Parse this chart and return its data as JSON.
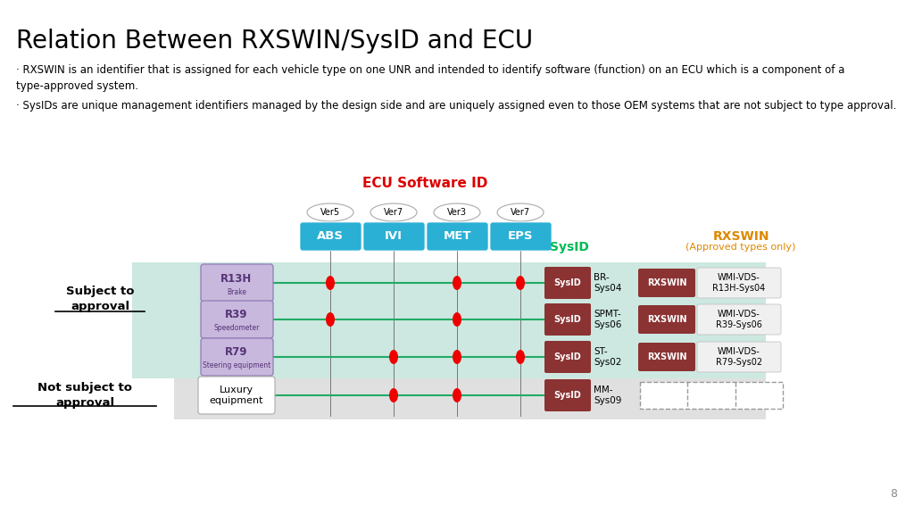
{
  "title": "Relation Between RXSWIN/SysID and ECU",
  "bullet1": "· RXSWIN is an identifier that is assigned for each vehicle type on one UNR and intended to identify software (function) on an ECU which is a component of a type-approved system.",
  "bullet2": "· SysIDs are unique management identifiers managed by the design side and are uniquely assigned even to those OEM systems that are not subject to type approval.",
  "ecu_label": "ECU Software ID",
  "ecu_label_color": "#dd0000",
  "ecu_cols": [
    "ABS",
    "IVI",
    "MET",
    "EPS"
  ],
  "ecu_versions": [
    "Ver5",
    "Ver7",
    "Ver3",
    "Ver7"
  ],
  "ecu_col_color": "#2ab0d4",
  "sysid_label": "SysID",
  "sysid_label_color": "#00bb55",
  "rxswin_label": "RXSWIN",
  "rxswin_sub_label": "(Approved types only)",
  "rxswin_label_color": "#dd8800",
  "subject_rows": [
    {
      "ecu_name": "R13H",
      "ecu_sub": "Brake",
      "dots": [
        0,
        2,
        3
      ],
      "sysid": "SysID",
      "sysid_id": "BR-\nSys04",
      "rxswin": "RXSWIN",
      "wmi": "WMI-VDS-\nR13H-Sys04"
    },
    {
      "ecu_name": "R39",
      "ecu_sub": "Speedometer",
      "dots": [
        0,
        2
      ],
      "sysid": "SysID",
      "sysid_id": "SPMT-\nSys06",
      "rxswin": "RXSWIN",
      "wmi": "WMI-VDS-\nR39-Sys06"
    },
    {
      "ecu_name": "R79",
      "ecu_sub": "Steering equipment",
      "dots": [
        1,
        2,
        3
      ],
      "sysid": "SysID",
      "sysid_id": "ST-\nSys02",
      "rxswin": "RXSWIN",
      "wmi": "WMI-VDS-\nR79-Sys02"
    }
  ],
  "not_subject_rows": [
    {
      "ecu_name": "Luxury\nequipment",
      "dots": [
        1,
        2
      ],
      "sysid": "SysID",
      "sysid_id": "MM-\nSys09"
    }
  ],
  "bg_color": "#ffffff",
  "subject_bg": "#cce8e0",
  "not_subject_bg": "#e0e0e0",
  "sysid_box_color": "#8b3333",
  "rxswin_box_color": "#8b3333",
  "dot_color": "#ee0000",
  "line_color": "#22aa66",
  "ecu_name_box_fill": "#c8b8dd",
  "ecu_name_box_edge": "#9980bb",
  "page_number": "8"
}
